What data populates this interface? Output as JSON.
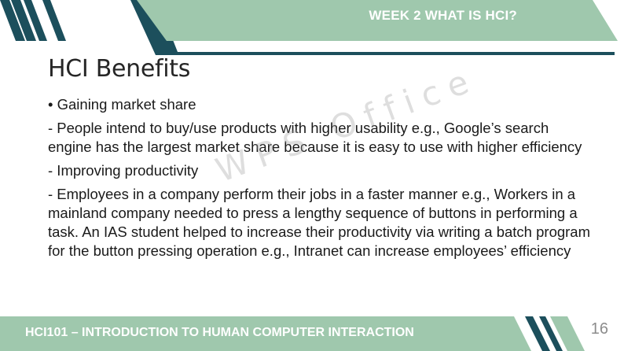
{
  "header": {
    "title": "WEEK 2 WHAT IS HCI?"
  },
  "slide": {
    "heading": "HCI Benefits",
    "paragraphs": [
      "• Gaining market share",
      "- People intend to buy/use products with higher usability e.g., Google’s search engine has the largest market share because it is easy to use with higher efficiency",
      "- Improving productivity",
      "- Employees in a company perform their jobs in a faster manner e.g., Workers in a mainland company needed to press a lengthy sequence of buttons in performing a task. An IAS student helped to increase their productivity via writing a batch program for the button pressing operation e.g., Intranet can increase employees’ efficiency"
    ]
  },
  "watermark": "WPS Office",
  "footer": {
    "course": "HCI101 – INTRODUCTION TO HUMAN COMPUTER INTERACTION",
    "page_number": "16"
  },
  "colors": {
    "sage_green": "#9fc8ad",
    "dark_teal": "#1c4f5c",
    "text": "#1a1a1a"
  }
}
